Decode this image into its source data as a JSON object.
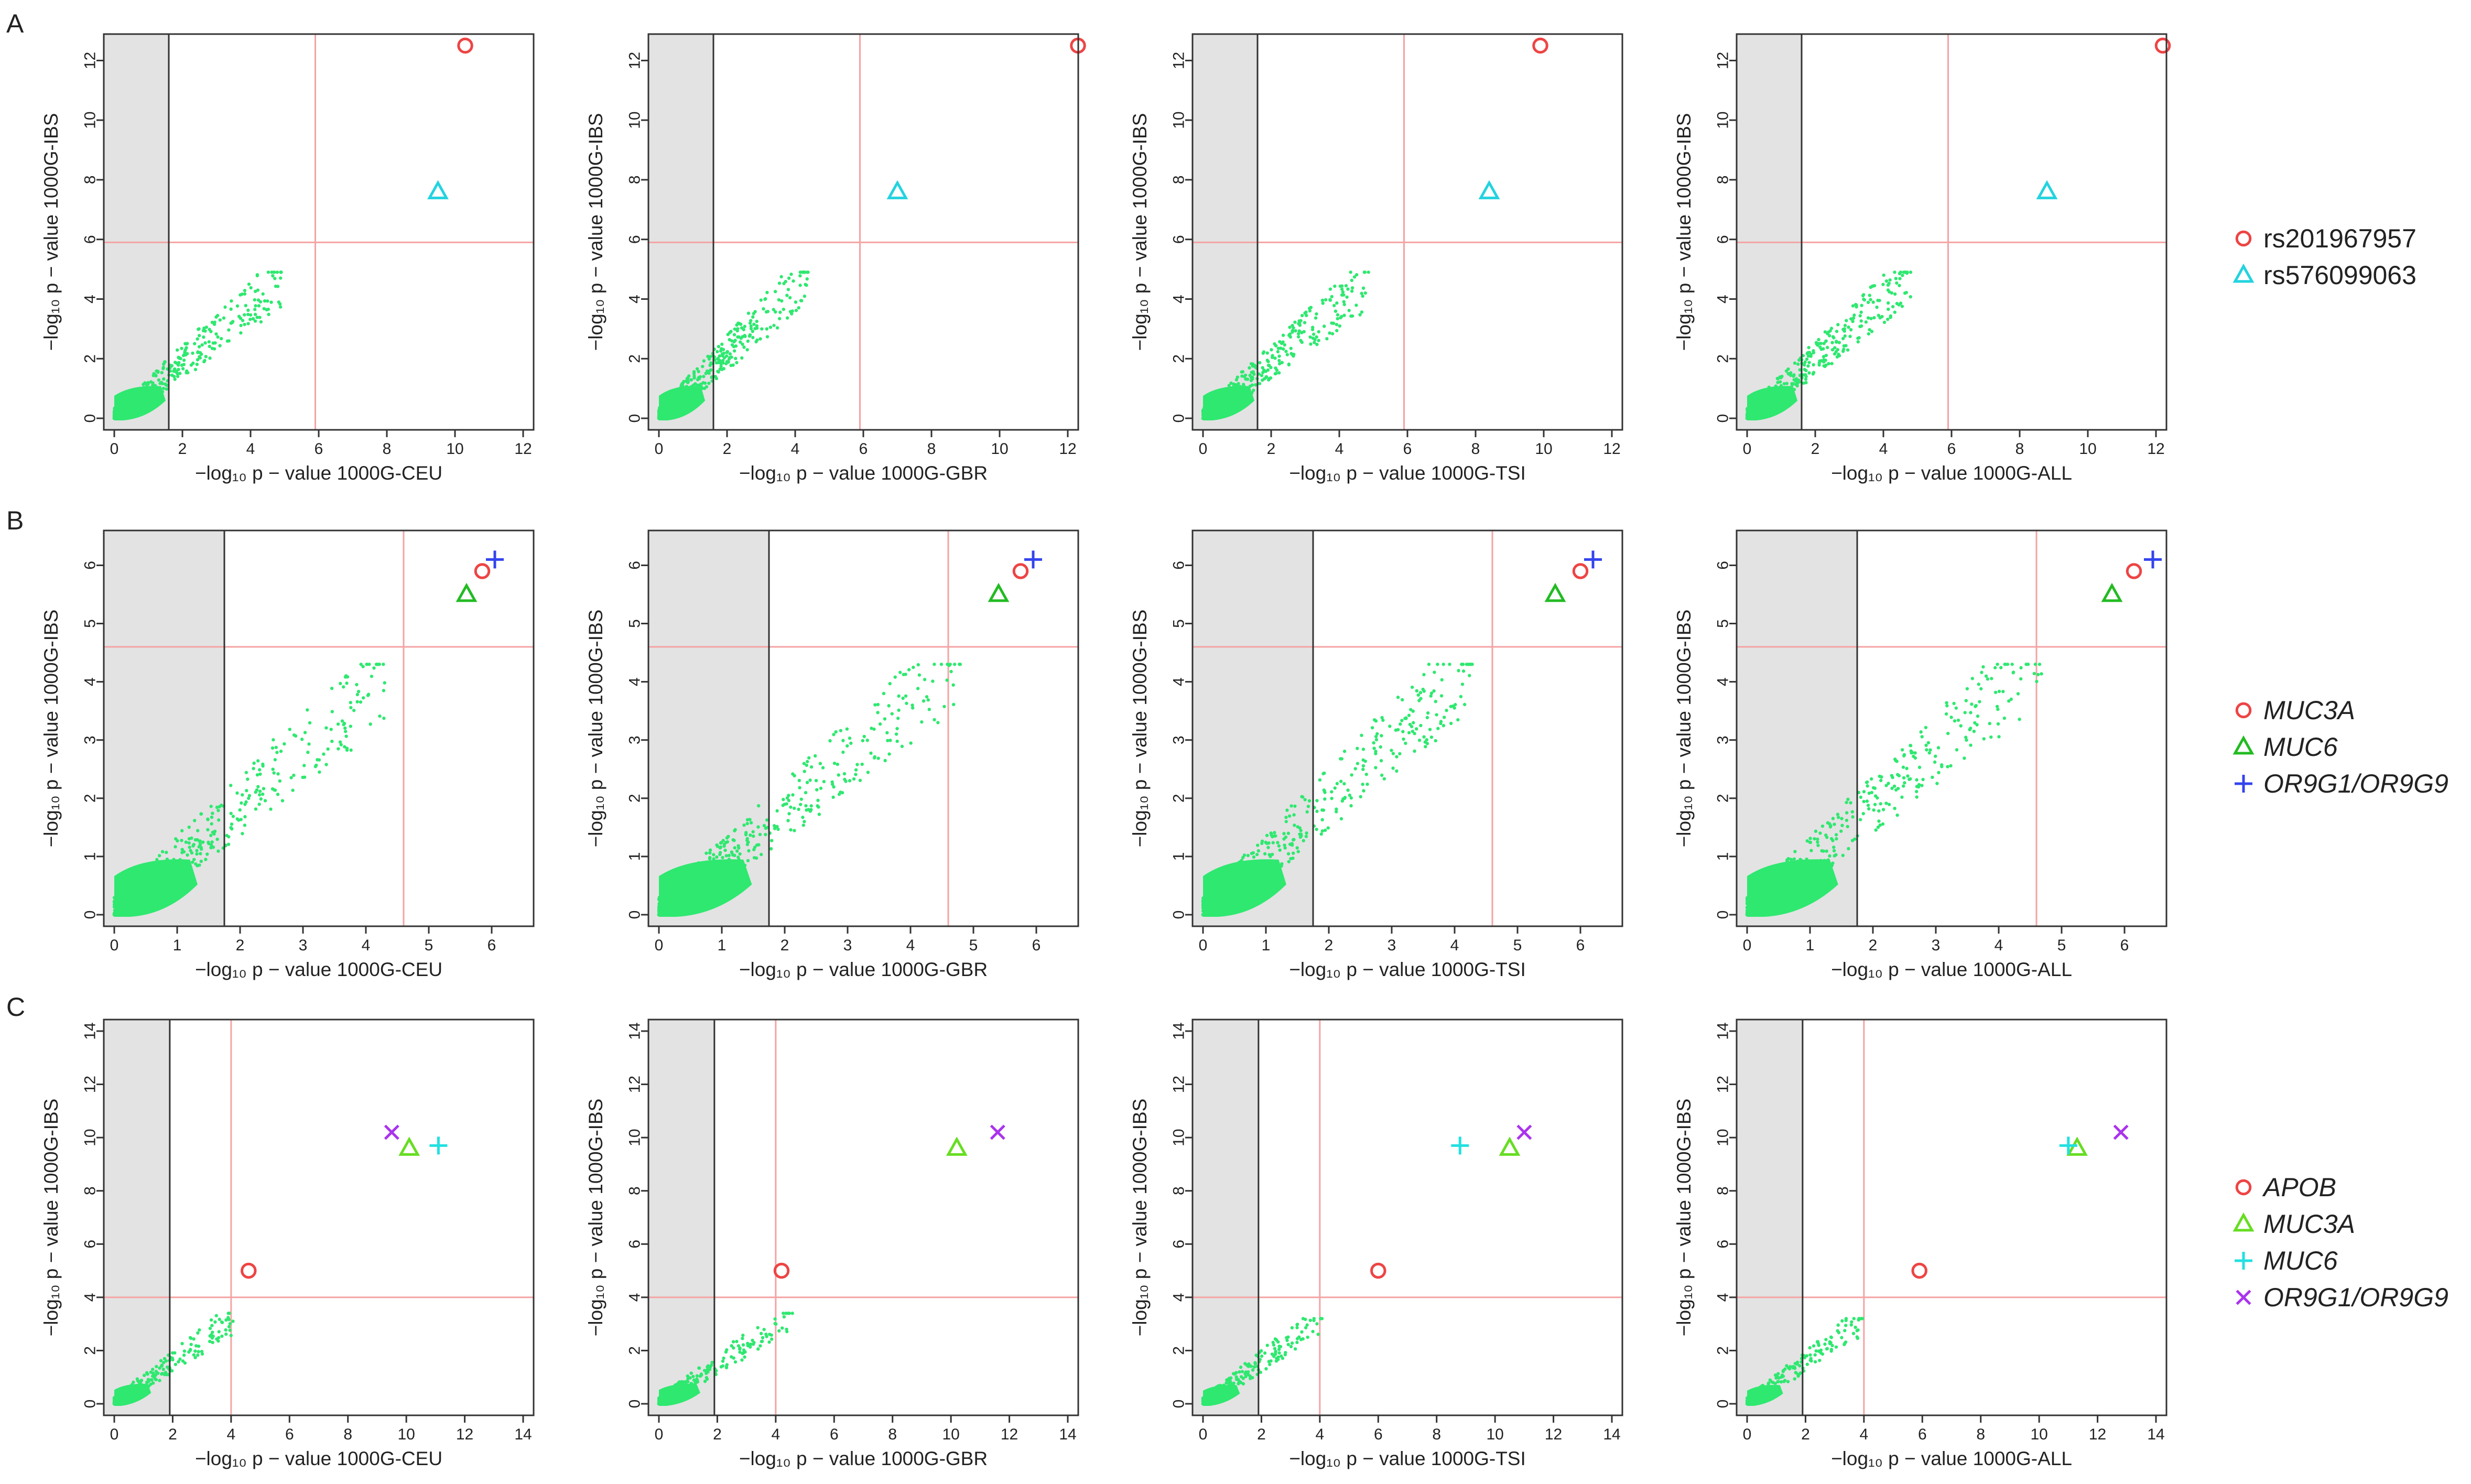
{
  "figure": {
    "row_labels": [
      "A",
      "B",
      "C"
    ],
    "legends": [
      {
        "row": 0,
        "entries": [
          {
            "label": "rs201967957",
            "marker": "circle",
            "color": "#ee4444",
            "italic": false
          },
          {
            "label": "rs576099063",
            "marker": "triangle",
            "color": "#22d3df",
            "italic": false
          }
        ]
      },
      {
        "row": 1,
        "entries": [
          {
            "label": "MUC3A",
            "marker": "circle",
            "color": "#ee4444",
            "italic": true
          },
          {
            "label": "MUC6",
            "marker": "triangle",
            "color": "#22bb22",
            "italic": true
          },
          {
            "label": "OR9G1/OR9G9",
            "marker": "plus",
            "color": "#3344ee",
            "italic": true
          }
        ]
      },
      {
        "row": 2,
        "entries": [
          {
            "label": "APOB",
            "marker": "circle",
            "color": "#ee4444",
            "italic": true
          },
          {
            "label": "MUC3A",
            "marker": "triangle",
            "color": "#66dd22",
            "italic": true
          },
          {
            "label": "MUC6",
            "marker": "plus",
            "color": "#22e0e0",
            "italic": true
          },
          {
            "label": "OR9G1/OR9G9",
            "marker": "cross",
            "color": "#aa33ee",
            "italic": true
          }
        ]
      }
    ]
  },
  "chart_data": [
    {
      "type": "scatter",
      "panel": "A",
      "row": 0,
      "col": 0,
      "xlabel": "−log₁₀ p − value 1000G-CEU",
      "ylabel": "−log₁₀ p − value 1000G-IBS",
      "xlim": [
        0,
        12
      ],
      "ylim": [
        0,
        12.5
      ],
      "xticks": [
        0,
        2,
        4,
        6,
        8,
        10,
        12
      ],
      "yticks": [
        0,
        2,
        4,
        6,
        8,
        10,
        12
      ],
      "gray_xmax": 1.6,
      "ref_x": 5.9,
      "ref_y": 5.9,
      "cloud": {
        "xmax": 4.9,
        "ymax": 4.9,
        "slope": 0.95,
        "n": 420
      },
      "highlights": [
        {
          "label": "rs201967957",
          "marker": "circle",
          "color": "#ee4444",
          "x": 10.3,
          "y": 12.5
        },
        {
          "label": "rs576099063",
          "marker": "triangle",
          "color": "#22d3df",
          "x": 9.5,
          "y": 7.6
        }
      ]
    },
    {
      "type": "scatter",
      "panel": "A",
      "row": 0,
      "col": 1,
      "xlabel": "−log₁₀ p − value 1000G-GBR",
      "ylabel": "−log₁₀ p − value 1000G-IBS",
      "xlim": [
        0,
        12
      ],
      "ylim": [
        0,
        12.5
      ],
      "xticks": [
        0,
        2,
        4,
        6,
        8,
        10,
        12
      ],
      "yticks": [
        0,
        2,
        4,
        6,
        8,
        10,
        12
      ],
      "gray_xmax": 1.6,
      "ref_x": 5.9,
      "ref_y": 5.9,
      "cloud": {
        "xmax": 4.4,
        "ymax": 4.9,
        "slope": 1.1,
        "n": 420
      },
      "highlights": [
        {
          "label": "rs201967957",
          "marker": "circle",
          "color": "#ee4444",
          "x": 12.3,
          "y": 12.5
        },
        {
          "label": "rs576099063",
          "marker": "triangle",
          "color": "#22d3df",
          "x": 7.0,
          "y": 7.6
        }
      ]
    },
    {
      "type": "scatter",
      "panel": "A",
      "row": 0,
      "col": 2,
      "xlabel": "−log₁₀ p − value 1000G-TSI",
      "ylabel": "−log₁₀ p − value 1000G-IBS",
      "xlim": [
        0,
        12
      ],
      "ylim": [
        0,
        12.5
      ],
      "xticks": [
        0,
        2,
        4,
        6,
        8,
        10,
        12
      ],
      "yticks": [
        0,
        2,
        4,
        6,
        8,
        10,
        12
      ],
      "gray_xmax": 1.6,
      "ref_x": 5.9,
      "ref_y": 5.9,
      "cloud": {
        "xmax": 4.9,
        "ymax": 4.9,
        "slope": 0.95,
        "n": 420
      },
      "highlights": [
        {
          "label": "rs201967957",
          "marker": "circle",
          "color": "#ee4444",
          "x": 9.9,
          "y": 12.5
        },
        {
          "label": "rs576099063",
          "marker": "triangle",
          "color": "#22d3df",
          "x": 8.4,
          "y": 7.6
        }
      ]
    },
    {
      "type": "scatter",
      "panel": "A",
      "row": 0,
      "col": 3,
      "xlabel": "−log₁₀ p − value 1000G-ALL",
      "ylabel": "−log₁₀ p − value 1000G-IBS",
      "xlim": [
        0,
        12
      ],
      "ylim": [
        0,
        12.5
      ],
      "xticks": [
        0,
        2,
        4,
        6,
        8,
        10,
        12
      ],
      "yticks": [
        0,
        2,
        4,
        6,
        8,
        10,
        12
      ],
      "gray_xmax": 1.6,
      "ref_x": 5.9,
      "ref_y": 5.9,
      "cloud": {
        "xmax": 4.8,
        "ymax": 4.9,
        "slope": 1.0,
        "n": 420
      },
      "highlights": [
        {
          "label": "rs201967957",
          "marker": "circle",
          "color": "#ee4444",
          "x": 12.2,
          "y": 12.5
        },
        {
          "label": "rs576099063",
          "marker": "triangle",
          "color": "#22d3df",
          "x": 8.8,
          "y": 7.6
        }
      ]
    },
    {
      "type": "scatter",
      "panel": "B",
      "row": 1,
      "col": 0,
      "xlabel": "−log₁₀ p − value 1000G-CEU",
      "ylabel": "−log₁₀ p − value 1000G-IBS",
      "xlim": [
        0,
        6.5
      ],
      "ylim": [
        0,
        6.4
      ],
      "xticks": [
        0,
        1,
        2,
        3,
        4,
        5,
        6
      ],
      "yticks": [
        0,
        1,
        2,
        3,
        4,
        5,
        6
      ],
      "gray_xmax": 1.75,
      "ref_x": 4.6,
      "ref_y": 4.6,
      "cloud": {
        "xmax": 4.3,
        "ymax": 4.3,
        "slope": 0.95,
        "n": 480
      },
      "highlights": [
        {
          "label": "MUC3A",
          "marker": "circle",
          "color": "#ee4444",
          "x": 5.85,
          "y": 5.9
        },
        {
          "label": "MUC6",
          "marker": "triangle",
          "color": "#22bb22",
          "x": 5.6,
          "y": 5.5
        },
        {
          "label": "OR9G1/OR9G9",
          "marker": "plus",
          "color": "#3344ee",
          "x": 6.05,
          "y": 6.1
        }
      ]
    },
    {
      "type": "scatter",
      "panel": "B",
      "row": 1,
      "col": 1,
      "xlabel": "−log₁₀ p − value 1000G-GBR",
      "ylabel": "−log₁₀ p − value 1000G-IBS",
      "xlim": [
        0,
        6.5
      ],
      "ylim": [
        0,
        6.4
      ],
      "xticks": [
        0,
        1,
        2,
        3,
        4,
        5,
        6
      ],
      "yticks": [
        0,
        1,
        2,
        3,
        4,
        5,
        6
      ],
      "gray_xmax": 1.75,
      "ref_x": 4.6,
      "ref_y": 4.6,
      "cloud": {
        "xmax": 4.8,
        "ymax": 4.3,
        "slope": 0.9,
        "n": 480
      },
      "highlights": [
        {
          "label": "MUC3A",
          "marker": "circle",
          "color": "#ee4444",
          "x": 5.75,
          "y": 5.9
        },
        {
          "label": "MUC6",
          "marker": "triangle",
          "color": "#22bb22",
          "x": 5.4,
          "y": 5.5
        },
        {
          "label": "OR9G1/OR9G9",
          "marker": "plus",
          "color": "#3344ee",
          "x": 5.95,
          "y": 6.1
        }
      ]
    },
    {
      "type": "scatter",
      "panel": "B",
      "row": 1,
      "col": 2,
      "xlabel": "−log₁₀ p − value 1000G-TSI",
      "ylabel": "−log₁₀ p − value 1000G-IBS",
      "xlim": [
        0,
        6.5
      ],
      "ylim": [
        0,
        6.4
      ],
      "xticks": [
        0,
        1,
        2,
        3,
        4,
        5,
        6
      ],
      "yticks": [
        0,
        1,
        2,
        3,
        4,
        5,
        6
      ],
      "gray_xmax": 1.75,
      "ref_x": 4.6,
      "ref_y": 4.6,
      "cloud": {
        "xmax": 4.3,
        "ymax": 4.3,
        "slope": 1.0,
        "n": 480
      },
      "highlights": [
        {
          "label": "MUC3A",
          "marker": "circle",
          "color": "#ee4444",
          "x": 6.0,
          "y": 5.9
        },
        {
          "label": "MUC6",
          "marker": "triangle",
          "color": "#22bb22",
          "x": 5.6,
          "y": 5.5
        },
        {
          "label": "OR9G1/OR9G9",
          "marker": "plus",
          "color": "#3344ee",
          "x": 6.2,
          "y": 6.1
        }
      ]
    },
    {
      "type": "scatter",
      "panel": "B",
      "row": 1,
      "col": 3,
      "xlabel": "−log₁₀ p − value 1000G-ALL",
      "ylabel": "−log₁₀ p − value 1000G-IBS",
      "xlim": [
        0,
        6.5
      ],
      "ylim": [
        0,
        6.4
      ],
      "xticks": [
        0,
        1,
        2,
        3,
        4,
        5,
        6
      ],
      "yticks": [
        0,
        1,
        2,
        3,
        4,
        5,
        6
      ],
      "gray_xmax": 1.75,
      "ref_x": 4.6,
      "ref_y": 4.6,
      "cloud": {
        "xmax": 4.7,
        "ymax": 4.3,
        "slope": 0.95,
        "n": 480
      },
      "highlights": [
        {
          "label": "MUC3A",
          "marker": "circle",
          "color": "#ee4444",
          "x": 6.15,
          "y": 5.9
        },
        {
          "label": "MUC6",
          "marker": "triangle",
          "color": "#22bb22",
          "x": 5.8,
          "y": 5.5
        },
        {
          "label": "OR9G1/OR9G9",
          "marker": "plus",
          "color": "#3344ee",
          "x": 6.45,
          "y": 6.1
        }
      ]
    },
    {
      "type": "scatter",
      "panel": "C",
      "row": 2,
      "col": 0,
      "xlabel": "−log₁₀ p − value 1000G-CEU",
      "ylabel": "−log₁₀ p − value 1000G-IBS",
      "xlim": [
        0,
        14
      ],
      "ylim": [
        0,
        14
      ],
      "xticks": [
        0,
        2,
        4,
        6,
        8,
        10,
        12,
        14
      ],
      "yticks": [
        0,
        2,
        4,
        6,
        8,
        10,
        12,
        14
      ],
      "gray_xmax": 1.9,
      "ref_x": 4.0,
      "ref_y": 4.0,
      "cloud": {
        "xmax": 4.1,
        "ymax": 3.4,
        "slope": 0.8,
        "n": 260
      },
      "highlights": [
        {
          "label": "APOB",
          "marker": "circle",
          "color": "#ee4444",
          "x": 4.6,
          "y": 5.0
        },
        {
          "label": "MUC3A",
          "marker": "triangle",
          "color": "#66dd22",
          "x": 10.1,
          "y": 9.6
        },
        {
          "label": "MUC6",
          "marker": "plus",
          "color": "#22e0e0",
          "x": 11.1,
          "y": 9.7
        },
        {
          "label": "OR9G1/OR9G9",
          "marker": "cross",
          "color": "#aa33ee",
          "x": 9.5,
          "y": 10.2
        }
      ]
    },
    {
      "type": "scatter",
      "panel": "C",
      "row": 2,
      "col": 1,
      "xlabel": "−log₁₀ p − value 1000G-GBR",
      "ylabel": "−log₁₀ p − value 1000G-IBS",
      "xlim": [
        0,
        14
      ],
      "ylim": [
        0,
        14
      ],
      "xticks": [
        0,
        2,
        4,
        6,
        8,
        10,
        12,
        14
      ],
      "yticks": [
        0,
        2,
        4,
        6,
        8,
        10,
        12,
        14
      ],
      "gray_xmax": 1.9,
      "ref_x": 4.0,
      "ref_y": 4.0,
      "cloud": {
        "xmax": 4.6,
        "ymax": 3.4,
        "slope": 0.75,
        "n": 260
      },
      "highlights": [
        {
          "label": "APOB",
          "marker": "circle",
          "color": "#ee4444",
          "x": 4.2,
          "y": 5.0
        },
        {
          "label": "MUC3A",
          "marker": "triangle",
          "color": "#66dd22",
          "x": 10.2,
          "y": 9.6
        },
        {
          "label": "OR9G1/OR9G9",
          "marker": "cross",
          "color": "#aa33ee",
          "x": 11.6,
          "y": 10.2
        }
      ]
    },
    {
      "type": "scatter",
      "panel": "C",
      "row": 2,
      "col": 2,
      "xlabel": "−log₁₀ p − value 1000G-TSI",
      "ylabel": "−log₁₀ p − value 1000G-IBS",
      "xlim": [
        0,
        14
      ],
      "ylim": [
        0,
        14
      ],
      "xticks": [
        0,
        2,
        4,
        6,
        8,
        10,
        12,
        14
      ],
      "yticks": [
        0,
        2,
        4,
        6,
        8,
        10,
        12,
        14
      ],
      "gray_xmax": 1.9,
      "ref_x": 4.0,
      "ref_y": 4.0,
      "cloud": {
        "xmax": 4.1,
        "ymax": 3.2,
        "slope": 0.8,
        "n": 260
      },
      "highlights": [
        {
          "label": "APOB",
          "marker": "circle",
          "color": "#ee4444",
          "x": 6.0,
          "y": 5.0
        },
        {
          "label": "MUC3A",
          "marker": "triangle",
          "color": "#66dd22",
          "x": 10.5,
          "y": 9.6
        },
        {
          "label": "MUC6",
          "marker": "plus",
          "color": "#22e0e0",
          "x": 8.8,
          "y": 9.7
        },
        {
          "label": "OR9G1/OR9G9",
          "marker": "cross",
          "color": "#aa33ee",
          "x": 11.0,
          "y": 10.2
        }
      ]
    },
    {
      "type": "scatter",
      "panel": "C",
      "row": 2,
      "col": 3,
      "xlabel": "−log₁₀ p − value 1000G-ALL",
      "ylabel": "−log₁₀ p − value 1000G-IBS",
      "xlim": [
        0,
        14
      ],
      "ylim": [
        0,
        14
      ],
      "xticks": [
        0,
        2,
        4,
        6,
        8,
        10,
        12,
        14
      ],
      "yticks": [
        0,
        2,
        4,
        6,
        8,
        10,
        12,
        14
      ],
      "gray_xmax": 1.9,
      "ref_x": 4.0,
      "ref_y": 4.0,
      "cloud": {
        "xmax": 4.0,
        "ymax": 3.2,
        "slope": 0.8,
        "n": 260
      },
      "highlights": [
        {
          "label": "APOB",
          "marker": "circle",
          "color": "#ee4444",
          "x": 5.9,
          "y": 5.0
        },
        {
          "label": "MUC3A",
          "marker": "triangle",
          "color": "#66dd22",
          "x": 11.3,
          "y": 9.6
        },
        {
          "label": "MUC6",
          "marker": "plus",
          "color": "#22e0e0",
          "x": 11.0,
          "y": 9.7
        },
        {
          "label": "OR9G1/OR9G9",
          "marker": "cross",
          "color": "#aa33ee",
          "x": 12.8,
          "y": 10.2
        }
      ]
    }
  ]
}
